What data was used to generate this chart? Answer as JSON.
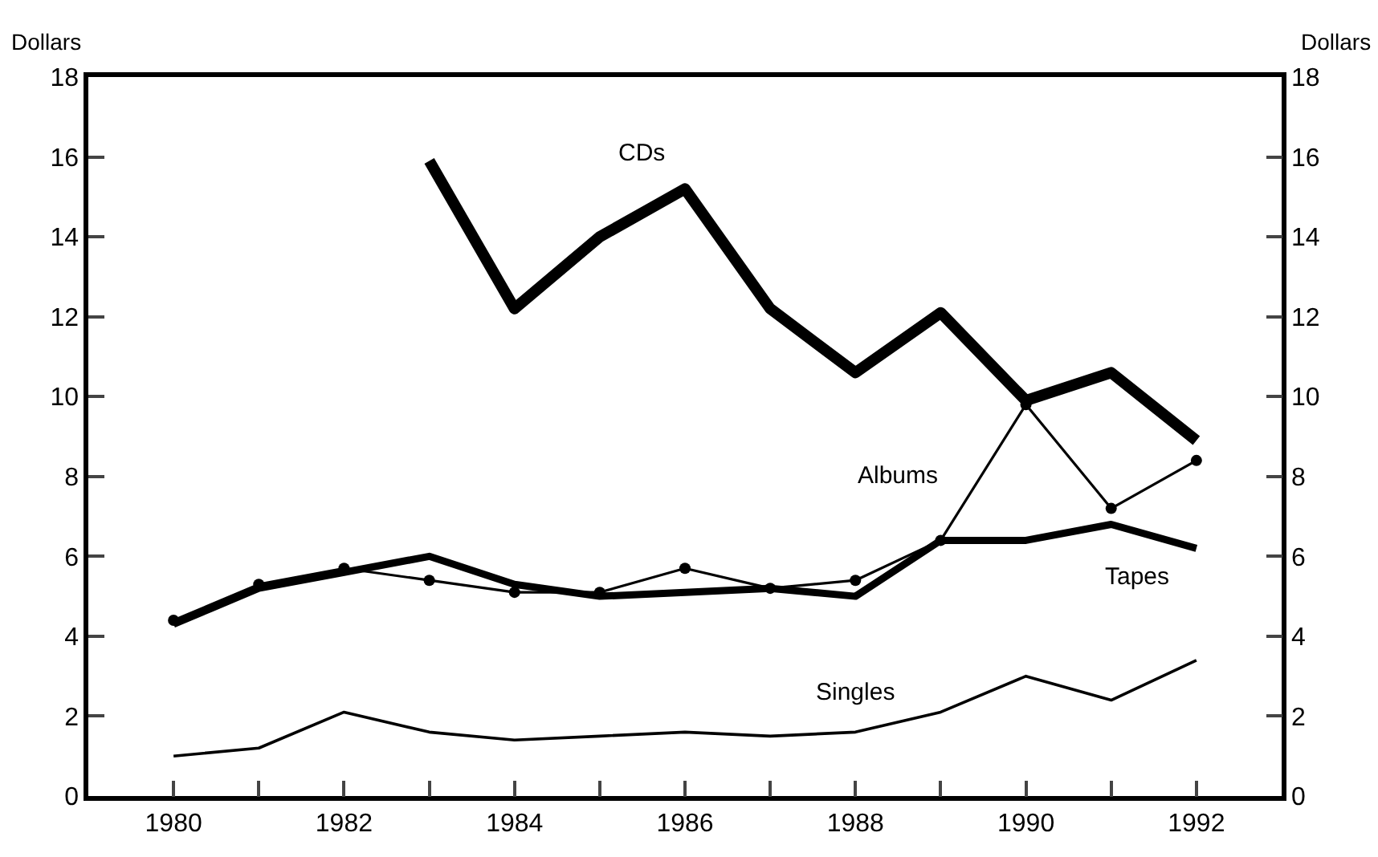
{
  "chart_data": {
    "type": "line",
    "ylabel": "Dollars",
    "y2label": "Dollars",
    "x": [
      1980,
      1981,
      1982,
      1983,
      1984,
      1985,
      1986,
      1987,
      1988,
      1989,
      1990,
      1991,
      1992
    ],
    "series": [
      {
        "name": "CDs",
        "color": "#000000",
        "marker": "none",
        "values": [
          null,
          null,
          null,
          15.9,
          12.2,
          14.0,
          15.2,
          12.2,
          10.6,
          12.1,
          9.9,
          10.6,
          8.9
        ]
      },
      {
        "name": "Albums",
        "color": "#000000",
        "marker": "circle",
        "values": [
          4.4,
          5.3,
          5.7,
          5.4,
          5.1,
          5.1,
          5.7,
          5.2,
          5.4,
          6.4,
          9.8,
          7.2,
          8.4
        ]
      },
      {
        "name": "Tapes",
        "color": "#000000",
        "marker": "none",
        "values": [
          4.3,
          5.2,
          5.6,
          6.0,
          5.3,
          5.0,
          5.1,
          5.2,
          5.0,
          6.4,
          6.4,
          6.8,
          6.2
        ]
      },
      {
        "name": "Singles",
        "color": "#000000",
        "marker": "none",
        "values": [
          1.0,
          1.2,
          2.1,
          1.6,
          1.4,
          1.5,
          1.6,
          1.5,
          1.6,
          2.1,
          3.0,
          2.4,
          3.4
        ]
      }
    ],
    "xlim": [
      1979,
      1993
    ],
    "xticks": [
      1980,
      {
        "value": 1981,
        "label": null
      },
      1982,
      {
        "value": 1983,
        "label": null
      },
      1984,
      {
        "value": 1985,
        "label": null
      },
      1986,
      {
        "value": 1987,
        "label": null
      },
      1988,
      {
        "value": 1989,
        "label": null
      },
      1990,
      {
        "value": 1991,
        "label": null
      },
      1992
    ],
    "ylim": [
      0,
      18
    ],
    "yticks": [
      0,
      2,
      4,
      6,
      8,
      10,
      12,
      14,
      16,
      18
    ],
    "y2lim": [
      0,
      18
    ],
    "y2ticks": [
      0,
      2,
      4,
      6,
      8,
      10,
      12,
      14,
      16,
      18
    ],
    "legend": false,
    "line_style": "solid"
  }
}
